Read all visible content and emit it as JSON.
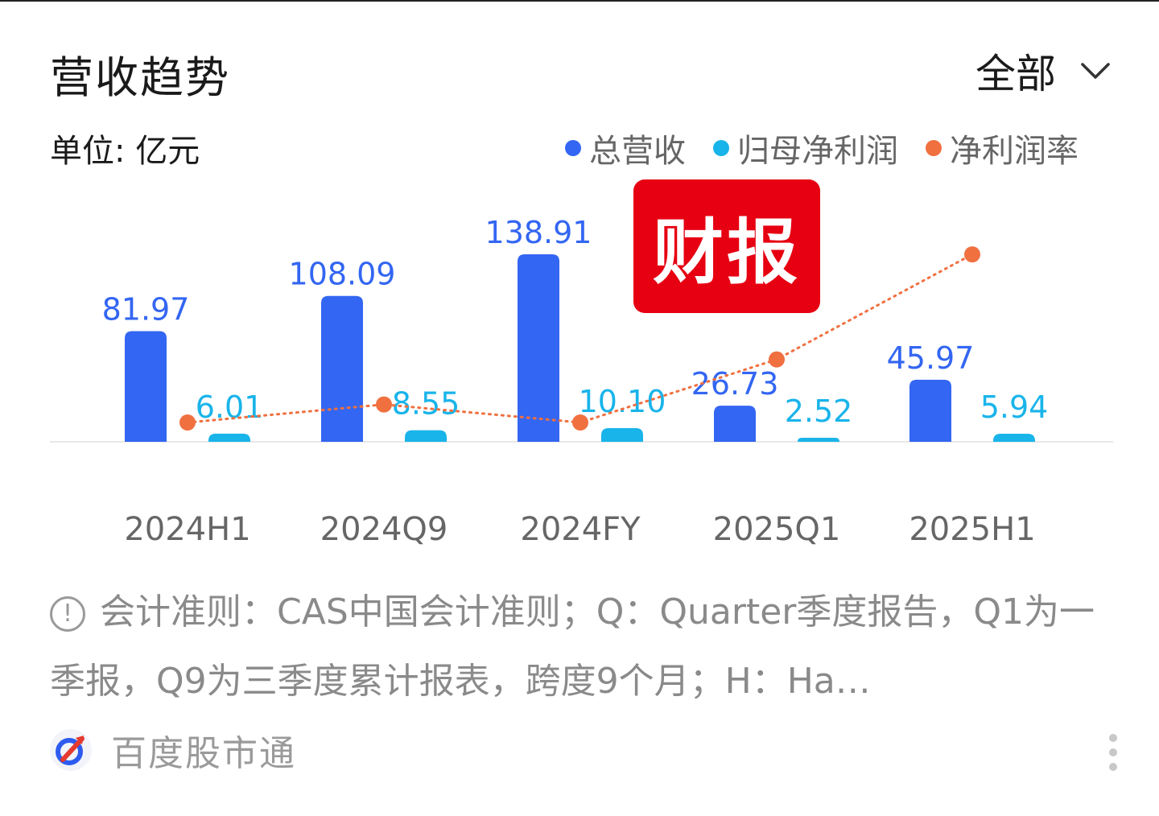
{
  "header": {
    "title": "营收趋势",
    "filter_label": "全部"
  },
  "unit_label": "单位: 亿元",
  "stamp_text": "财报",
  "colors": {
    "revenue": "#3366f2",
    "net_profit": "#19b4ea",
    "margin": "#f07040",
    "stamp": "#e60012"
  },
  "chart_data": {
    "type": "bar",
    "categories": [
      "2024H1",
      "2024Q9",
      "2024FY",
      "2025Q1",
      "2025H1"
    ],
    "series": [
      {
        "name": "总营收",
        "type": "bar",
        "color": "#3366f2",
        "values": [
          81.97,
          108.09,
          138.91,
          26.73,
          45.97
        ]
      },
      {
        "name": "归母净利润",
        "type": "bar",
        "color": "#19b4ea",
        "values": [
          6.01,
          8.55,
          10.1,
          2.52,
          5.94
        ]
      },
      {
        "name": "净利润率",
        "type": "line",
        "color": "#f07040",
        "values": [
          7.3,
          7.9,
          7.3,
          9.4,
          12.9
        ]
      }
    ],
    "legend_position": "top-right",
    "grid": false
  },
  "note": {
    "text": "会计准则：CAS中国会计准则；Q：Quarter季度报告，Q1为一季报，Q9为三季度累计报表，跨度9个月；H：Ha…"
  },
  "footer": {
    "brand_name": "百度股市通"
  }
}
